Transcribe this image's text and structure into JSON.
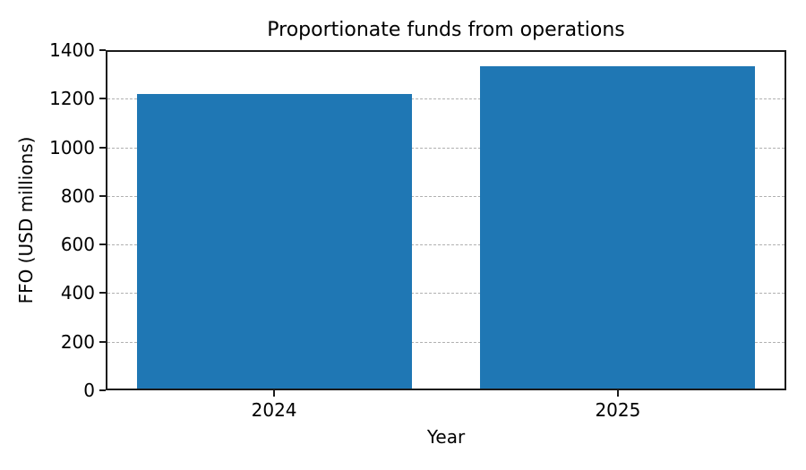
{
  "chart_data": {
    "type": "bar",
    "title": "Proportionate funds from operations",
    "xlabel": "Year",
    "ylabel": "FFO (USD millions)",
    "categories": [
      "2024",
      "2025"
    ],
    "values": [
      1220,
      1335
    ],
    "ylim": [
      0,
      1400
    ],
    "yticks": [
      0,
      200,
      400,
      600,
      800,
      1000,
      1200,
      1400
    ],
    "xlim": [
      -0.49,
      1.49
    ],
    "bar_width": 0.8,
    "bar_color": "#1f77b4",
    "grid": {
      "axis": "y",
      "line_style": "dashed",
      "color": "#b0b0b0"
    },
    "axis_color": "#1a1a1a",
    "background": "#ffffff",
    "legend": null
  }
}
